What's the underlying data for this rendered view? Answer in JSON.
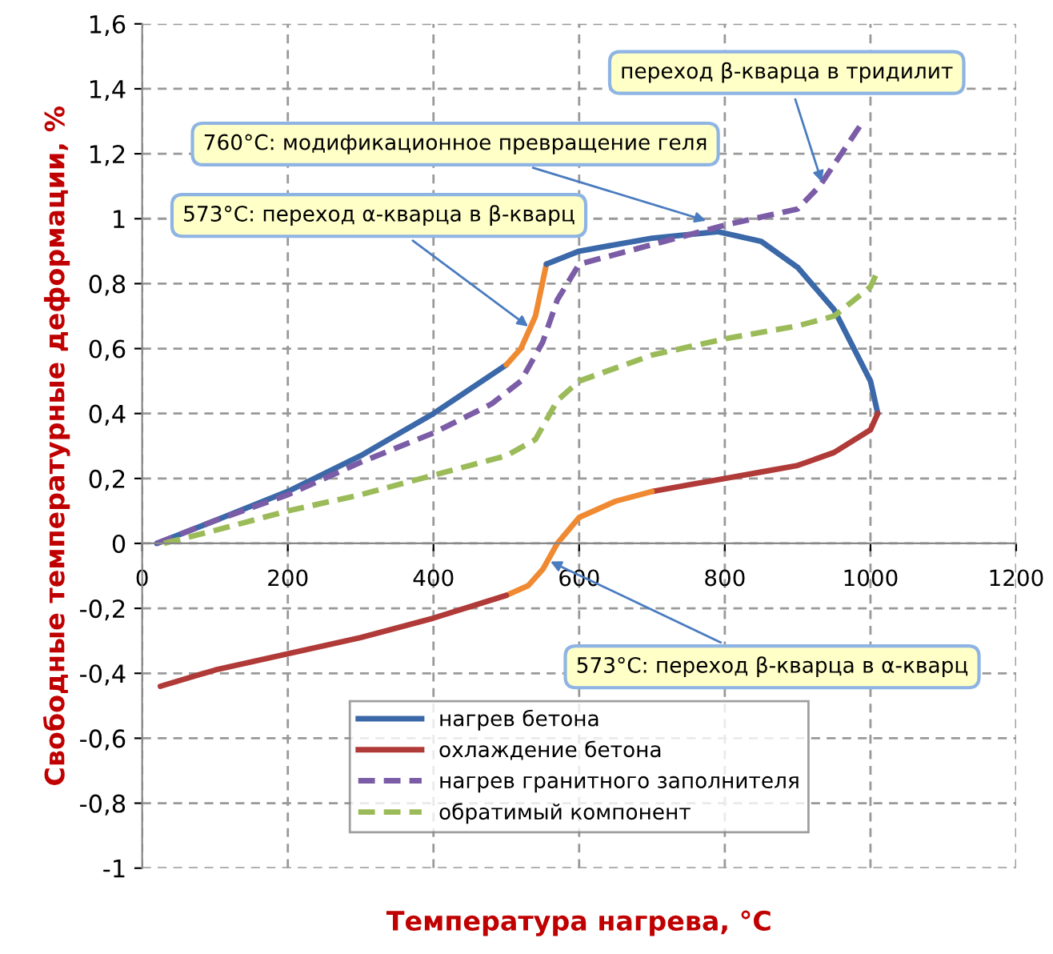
{
  "chart_data": {
    "type": "line",
    "xlabel": "Температура нагрева, °C",
    "ylabel": "Свободные температурные деформации, %",
    "xlim": [
      0,
      1200
    ],
    "xticks": [
      0,
      200,
      400,
      600,
      800,
      1000,
      1200
    ],
    "ylim": [
      -1,
      1.6
    ],
    "yticks": [
      {
        "value": -1,
        "label": "-1"
      },
      {
        "value": -0.8,
        "label": "-0,8"
      },
      {
        "value": -0.6,
        "label": "-0,6"
      },
      {
        "value": -0.4,
        "label": "-0,4"
      },
      {
        "value": -0.2,
        "label": "-0,2"
      },
      {
        "value": 0,
        "label": "0"
      },
      {
        "value": 0.2,
        "label": "0,2"
      },
      {
        "value": 0.4,
        "label": "0,4"
      },
      {
        "value": 0.6,
        "label": "0,6"
      },
      {
        "value": 0.8,
        "label": "0,8"
      },
      {
        "value": 1,
        "label": "1"
      },
      {
        "value": 1.2,
        "label": "1,2"
      },
      {
        "value": 1.4,
        "label": "1,4"
      },
      {
        "value": 1.6,
        "label": "1,6"
      }
    ],
    "grid": true,
    "legend": "bottom",
    "marker": "none",
    "series": [
      {
        "name": "нагрев бетона",
        "color": "#3a68a8",
        "line_style": "solid",
        "x": [
          20,
          100,
          200,
          300,
          400,
          500
        ],
        "values": [
          0,
          0.07,
          0.16,
          0.27,
          0.4,
          0.55
        ]
      },
      {
        "color": "#f08a32",
        "line_style": "solid",
        "x": [
          500,
          520,
          540,
          555
        ],
        "values": [
          0.55,
          0.6,
          0.7,
          0.86
        ]
      },
      {
        "color": "#3a68a8",
        "line_style": "solid",
        "x": [
          555,
          600,
          700,
          790,
          850,
          900,
          950,
          1000,
          1010
        ],
        "values": [
          0.86,
          0.9,
          0.94,
          0.96,
          0.93,
          0.85,
          0.72,
          0.5,
          0.4
        ]
      },
      {
        "name": "охлаждение бетона",
        "color": "#b03a38",
        "line_style": "solid",
        "x": [
          1010,
          1000,
          950,
          900,
          850,
          800,
          750,
          700
        ],
        "values": [
          0.4,
          0.35,
          0.28,
          0.24,
          0.22,
          0.2,
          0.18,
          0.16
        ]
      },
      {
        "color": "#f08a32",
        "line_style": "solid",
        "x": [
          700,
          650,
          600,
          570,
          550,
          530,
          500
        ],
        "values": [
          0.16,
          0.13,
          0.08,
          0,
          -0.08,
          -0.13,
          -0.16
        ]
      },
      {
        "color": "#b03a38",
        "line_style": "solid",
        "x": [
          500,
          400,
          300,
          200,
          100,
          25
        ],
        "values": [
          -0.16,
          -0.23,
          -0.29,
          -0.34,
          -0.39,
          -0.44
        ]
      },
      {
        "name": "нагрев гранитного заполнителя",
        "color": "#7b5ca6",
        "line_style": "dashed",
        "x": [
          20,
          100,
          200,
          300,
          400,
          480,
          520,
          550,
          570,
          600,
          700,
          800,
          900,
          930,
          960,
          990
        ],
        "values": [
          0,
          0.07,
          0.15,
          0.25,
          0.34,
          0.43,
          0.5,
          0.62,
          0.75,
          0.86,
          0.92,
          0.98,
          1.03,
          1.1,
          1.2,
          1.3
        ]
      },
      {
        "name": "обратимый компонент",
        "color": "#9bbb59",
        "line_style": "dashed",
        "x": [
          30,
          100,
          200,
          300,
          400,
          500,
          540,
          570,
          600,
          700,
          800,
          900,
          950,
          1000,
          1010
        ],
        "values": [
          0,
          0.04,
          0.1,
          0.15,
          0.21,
          0.27,
          0.32,
          0.44,
          0.5,
          0.58,
          0.63,
          0.67,
          0.7,
          0.79,
          0.84
        ]
      }
    ],
    "annotations": [
      {
        "text": "573°C: переход α-кварца в β-кварц",
        "x": 535,
        "y": 0.66
      },
      {
        "text": "760°C: модификационное превращение геля",
        "x": 780,
        "y": 0.99
      },
      {
        "text": "переход β-кварца в тридилит",
        "x": 935,
        "y": 1.1
      },
      {
        "text": "573°C: переход β-кварца в α-кварц",
        "x": 555,
        "y": -0.05
      }
    ]
  }
}
